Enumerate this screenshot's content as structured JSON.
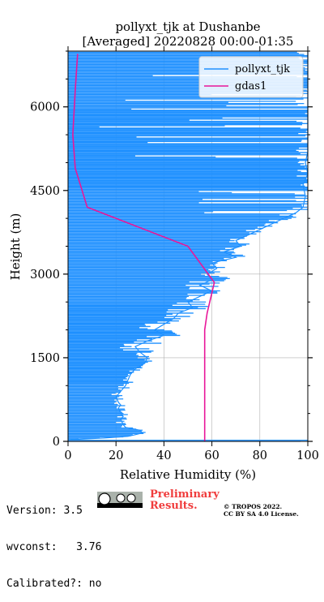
{
  "chart_data": {
    "type": "line",
    "title": [
      "pollyxt_tjk at Dushanbe",
      "[Averaged] 20220828 00:00-01:35"
    ],
    "xlabel": "Relative Humidity (%)",
    "ylabel": "Height (m)",
    "xlim": [
      0,
      100
    ],
    "ylim": [
      0,
      7000
    ],
    "xticks": [
      0,
      20,
      40,
      60,
      80,
      100
    ],
    "yticks": [
      0,
      1500,
      3000,
      4500,
      6000
    ],
    "grid": true,
    "legend_position": "top-right",
    "series": [
      {
        "name": "pollyxt_tjk",
        "color": "#1e90ff",
        "style": "noisy-profile",
        "points": [
          [
            1,
            30
          ],
          [
            15,
            60
          ],
          [
            25,
            90
          ],
          [
            28,
            120
          ],
          [
            31,
            150
          ],
          [
            30,
            200
          ],
          [
            24,
            250
          ],
          [
            23,
            300
          ],
          [
            22,
            400
          ],
          [
            23,
            450
          ],
          [
            22,
            500
          ],
          [
            21,
            600
          ],
          [
            22,
            650
          ],
          [
            21,
            700
          ],
          [
            20,
            800
          ],
          [
            21,
            850
          ],
          [
            22,
            900
          ],
          [
            24,
            1000
          ],
          [
            25,
            1100
          ],
          [
            26,
            1200
          ],
          [
            28,
            1300
          ],
          [
            32,
            1400
          ],
          [
            33,
            1500
          ],
          [
            30,
            1600
          ],
          [
            28,
            1700
          ],
          [
            33,
            1800
          ],
          [
            40,
            1900
          ],
          [
            36,
            2000
          ],
          [
            40,
            2100
          ],
          [
            44,
            2200
          ],
          [
            46,
            2300
          ],
          [
            52,
            2400
          ],
          [
            50,
            2500
          ],
          [
            55,
            2600
          ],
          [
            60,
            2700
          ],
          [
            55,
            2800
          ],
          [
            60,
            2900
          ],
          [
            58,
            3000
          ],
          [
            62,
            3100
          ],
          [
            60,
            3200
          ],
          [
            70,
            3300
          ],
          [
            65,
            3400
          ],
          [
            72,
            3500
          ],
          [
            70,
            3600
          ],
          [
            75,
            3700
          ],
          [
            80,
            3800
          ],
          [
            85,
            3900
          ],
          [
            90,
            4000
          ],
          [
            95,
            4100
          ],
          [
            98,
            4200
          ],
          [
            99,
            4400
          ],
          [
            98,
            4600
          ],
          [
            100,
            4800
          ],
          [
            99,
            5000
          ],
          [
            100,
            5200
          ],
          [
            100,
            5500
          ],
          [
            100,
            6000
          ],
          [
            100,
            6500
          ],
          [
            100,
            7000
          ]
        ]
      },
      {
        "name": "gdas1",
        "color": "#e8179a",
        "style": "line",
        "points": [
          [
            57,
            0
          ],
          [
            57,
            500
          ],
          [
            57,
            1000
          ],
          [
            57,
            1500
          ],
          [
            57,
            2000
          ],
          [
            58,
            2300
          ],
          [
            61,
            2850
          ],
          [
            50,
            3500
          ],
          [
            8,
            4200
          ],
          [
            3,
            4900
          ],
          [
            2,
            5500
          ],
          [
            3,
            6300
          ],
          [
            4,
            6950
          ]
        ]
      }
    ]
  },
  "footer": {
    "version": "Version: 3.5",
    "wvconst": "wvconst:   3.76",
    "calibrated": "Calibrated?: no",
    "preliminary_line1": "Preliminary",
    "preliminary_line2": "Results.",
    "copyright_line1": "© TROPOS 2022.",
    "copyright_line2": "CC BY SA 4.0 License."
  }
}
